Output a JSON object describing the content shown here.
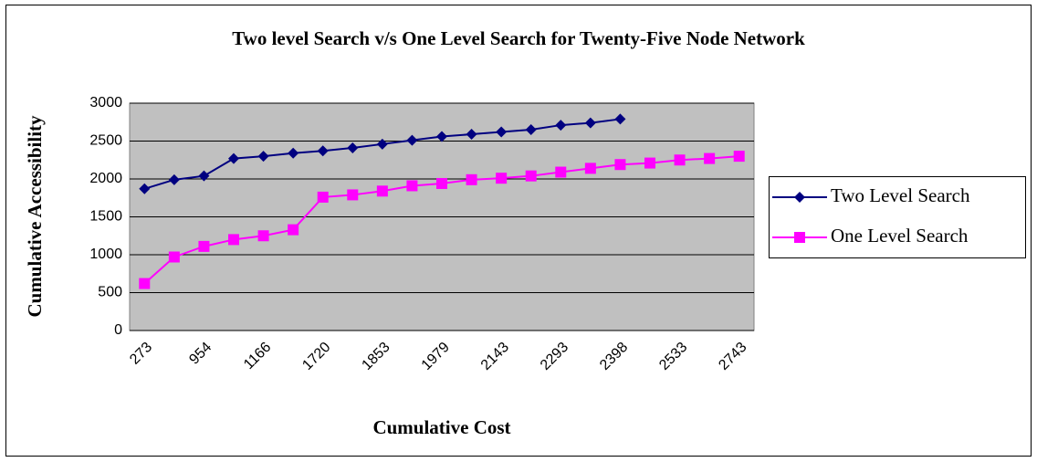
{
  "chart_data": {
    "type": "line",
    "title": "Two level Search v/s One Level Search for Twenty-Five Node Network",
    "x_label": "Cumulative Cost",
    "y_label": "Cumulative Accessibility",
    "categories": [
      "273",
      null,
      "954",
      null,
      "1166",
      null,
      "1720",
      null,
      "1853",
      null,
      "1979",
      null,
      "2143",
      null,
      "2293",
      null,
      "2398",
      null,
      "2533",
      null,
      "2743"
    ],
    "series": [
      {
        "name": "Two Level Search",
        "color": "#000080",
        "marker": "diamond",
        "values": [
          1870,
          1990,
          2040,
          2270,
          2300,
          2340,
          2370,
          2410,
          2460,
          2510,
          2560,
          2590,
          2620,
          2650,
          2710,
          2740,
          2790,
          null,
          null,
          null,
          null
        ]
      },
      {
        "name": "One Level Search",
        "color": "#ff00ff",
        "marker": "square",
        "values": [
          620,
          970,
          1110,
          1200,
          1250,
          1330,
          1760,
          1790,
          1840,
          1910,
          1940,
          1990,
          2010,
          2040,
          2090,
          2140,
          2190,
          2210,
          2250,
          2270,
          2300
        ]
      }
    ],
    "ylim": [
      0,
      3000
    ],
    "yticks": [
      0,
      500,
      1000,
      1500,
      2000,
      2500,
      3000
    ],
    "grid": true,
    "legend": "right"
  }
}
